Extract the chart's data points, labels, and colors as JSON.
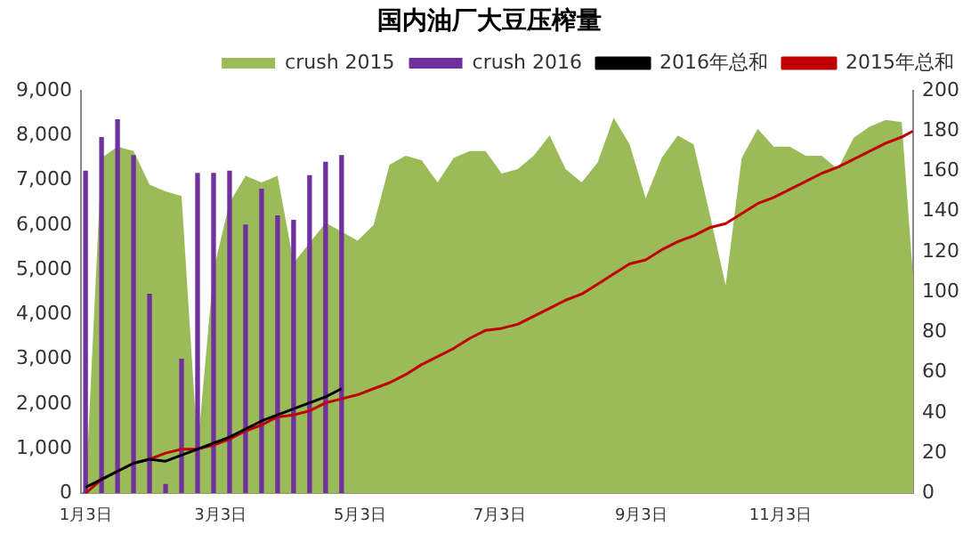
{
  "chart_data": {
    "type": "area",
    "title": "国内油厂大豆压榨量",
    "x": [
      "--01-03",
      "--01-10",
      "--01-17",
      "--01-24",
      "--01-31",
      "--02-07",
      "--02-14",
      "--02-21",
      "--02-28",
      "--03-07",
      "--03-14",
      "--03-21",
      "--03-28",
      "--04-04",
      "--04-11",
      "--04-18",
      "--04-25",
      "--05-02",
      "--05-09",
      "--05-16",
      "--05-23",
      "--05-30",
      "--06-06",
      "--06-13",
      "--06-20",
      "--06-27",
      "--07-04",
      "--07-11",
      "--07-18",
      "--07-25",
      "--08-01",
      "--08-08",
      "--08-15",
      "--08-22",
      "--08-29",
      "--09-05",
      "--09-12",
      "--09-19",
      "--09-26",
      "--10-03",
      "--10-10",
      "--10-17",
      "--10-24",
      "--10-31",
      "--11-07",
      "--11-14",
      "--11-21",
      "--11-28",
      "--12-05",
      "--12-12",
      "--12-19",
      "--12-26",
      "--12-31"
    ],
    "series": [
      {
        "name": "crush 2015",
        "color": "#9bbb59",
        "values": [
          0,
          7500,
          7750,
          7650,
          6900,
          6750,
          6650,
          1000,
          5000,
          6500,
          7100,
          6950,
          7100,
          5150,
          5600,
          6050,
          5850,
          5650,
          6000,
          7350,
          7550,
          7450,
          6950,
          7500,
          7650,
          7650,
          7150,
          7250,
          7550,
          8000,
          7250,
          6950,
          7400,
          8400,
          7800,
          6600,
          7500,
          8000,
          7800,
          6250,
          4650,
          7500,
          8150,
          7750,
          7750,
          7550,
          7550,
          7250,
          7950,
          8200,
          8350,
          8300,
          4800
        ]
      },
      {
        "name": "crush 2016",
        "type": "bar",
        "color": "#7030a0",
        "x": [
          "--01-03",
          "--01-10",
          "--01-17",
          "--01-24",
          "--01-31",
          "--02-07",
          "--02-14",
          "--02-21",
          "--02-28",
          "--03-07",
          "--03-14",
          "--03-21",
          "--03-28",
          "--04-04",
          "--04-11",
          "--04-18",
          "--04-25"
        ],
        "values": [
          7200,
          7950,
          8350,
          7550,
          4450,
          200,
          3000,
          7150,
          7150,
          7200,
          6000,
          6800,
          6200,
          6100,
          7100,
          7400,
          7550
        ]
      },
      {
        "name": "2016年总和",
        "type": "line",
        "axis": "y2",
        "color": "#000000",
        "x": [
          "--01-03",
          "--01-10",
          "--01-17",
          "--01-24",
          "--01-31",
          "--02-07",
          "--02-14",
          "--02-21",
          "--02-28",
          "--03-07",
          "--03-14",
          "--03-21",
          "--03-28",
          "--04-04",
          "--04-11",
          "--04-18",
          "--04-25"
        ],
        "values": [
          3,
          7,
          11,
          15,
          17,
          16,
          19,
          22,
          25,
          28,
          32,
          36,
          39,
          42,
          45,
          48,
          52
        ]
      },
      {
        "name": "2015年总和",
        "type": "line",
        "axis": "y2",
        "color": "#c00000",
        "values": [
          0,
          7,
          11,
          15,
          17,
          20,
          22,
          22,
          24,
          27,
          31,
          34,
          38,
          39,
          41,
          45,
          47,
          49,
          52,
          55,
          59,
          64,
          68,
          72,
          77,
          81,
          82,
          84,
          88,
          92,
          96,
          99,
          104,
          109,
          114,
          116,
          121,
          125,
          128,
          132,
          134,
          139,
          144,
          147,
          151,
          155,
          159,
          162,
          166,
          170,
          174,
          177,
          180
        ]
      }
    ],
    "xlim": [
      "--01-01",
      "--12-31"
    ],
    "xticks": [
      {
        "value": "--01-03",
        "label": "1月3日"
      },
      {
        "value": "--03-03",
        "label": "3月3日"
      },
      {
        "value": "--05-03",
        "label": "5月3日"
      },
      {
        "value": "--07-03",
        "label": "7月3日"
      },
      {
        "value": "--09-03",
        "label": "9月3日"
      },
      {
        "value": "--11-03",
        "label": "11月3日"
      }
    ],
    "ylim": [
      0,
      9000
    ],
    "yticks": [
      0,
      {
        "value": 1000,
        "label": "1,000"
      },
      {
        "value": 2000,
        "label": "2,000"
      },
      {
        "value": 3000,
        "label": "3,000"
      },
      {
        "value": 4000,
        "label": "4,000"
      },
      {
        "value": 5000,
        "label": "5,000"
      },
      {
        "value": 6000,
        "label": "6,000"
      },
      {
        "value": 7000,
        "label": "7,000"
      },
      {
        "value": 8000,
        "label": "8,000"
      },
      {
        "value": 9000,
        "label": "9,000"
      }
    ],
    "y2lim": [
      0,
      200
    ],
    "y2ticks": [
      0,
      20,
      40,
      60,
      80,
      100,
      120,
      140,
      160,
      180,
      200
    ],
    "grid": false,
    "legend": "top right"
  }
}
